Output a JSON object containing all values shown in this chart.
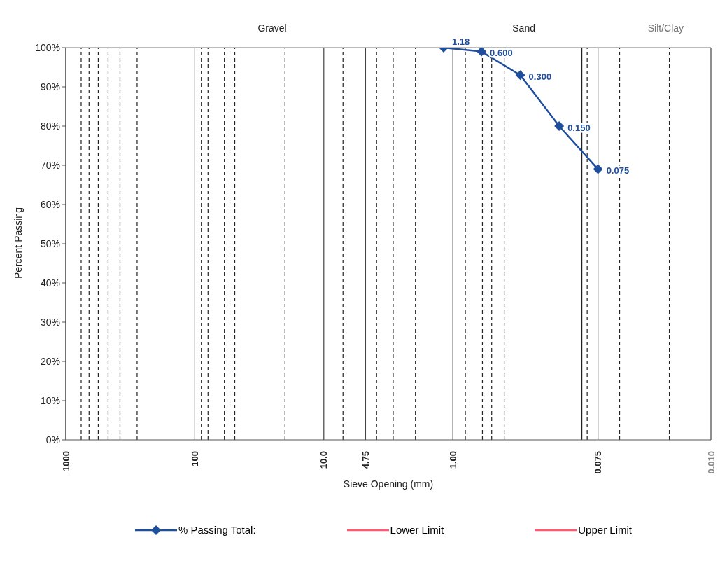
{
  "chart_data": {
    "type": "line",
    "xlabel": "Sieve Opening (mm)",
    "ylabel": "Percent Passing",
    "annotations": [
      "Gravel",
      "Sand",
      "Silt/Clay",
      {
        "text": "1.18",
        "x": 1.18,
        "y": 100
      },
      {
        "text": "0.600",
        "x": 0.6,
        "y": 99
      },
      {
        "text": "0.300",
        "x": 0.3,
        "y": 93
      },
      {
        "text": "0.150",
        "x": 0.15,
        "y": 80
      },
      {
        "text": "0.075",
        "x": 0.075,
        "y": 69
      }
    ],
    "x": [
      1.18,
      0.6,
      0.3,
      0.15,
      0.075
    ],
    "series": [
      {
        "name": "% Passing Total:",
        "color": "#1f4e9c",
        "values": [
          100,
          99,
          93,
          80,
          69
        ],
        "marker": "diamond"
      },
      {
        "name": "Lower Limit",
        "color": "#ff5a72",
        "values": [
          null,
          null,
          null,
          null,
          null
        ],
        "marker": "none"
      },
      {
        "name": "Upper Limit",
        "color": "#ff5a72",
        "values": [
          null,
          null,
          null,
          null,
          null
        ],
        "marker": "none"
      }
    ],
    "log": "x",
    "xlim": [
      1000,
      0.01
    ],
    "xticks": [
      1000,
      100,
      {
        "value": 10,
        "label": "10.0"
      },
      4.75,
      {
        "value": 1,
        "label": "1.00"
      },
      0.075,
      {
        "value": 0.01,
        "label": "0.010"
      }
    ],
    "ylim": [
      0,
      100
    ],
    "yticks": [
      {
        "value": 0,
        "label": "0%"
      },
      {
        "value": 10,
        "label": "10%"
      },
      {
        "value": 20,
        "label": "20%"
      },
      {
        "value": 30,
        "label": "30%"
      },
      {
        "value": 40,
        "label": "40%"
      },
      {
        "value": 50,
        "label": "50%"
      },
      {
        "value": 60,
        "label": "60%"
      },
      {
        "value": 70,
        "label": "70%"
      },
      {
        "value": 80,
        "label": "80%"
      },
      {
        "value": 90,
        "label": "90%"
      },
      {
        "value": 100,
        "label": "100%"
      }
    ],
    "grid": "x",
    "ref_lines": [
      {
        "axis": "x",
        "value": 760,
        "line_style": "dashed"
      },
      {
        "axis": "x",
        "value": 660,
        "line_style": "dashed"
      },
      {
        "axis": "x",
        "value": 560,
        "line_style": "dashed"
      },
      {
        "axis": "x",
        "value": 470,
        "line_style": "dashed"
      },
      {
        "axis": "x",
        "value": 380,
        "line_style": "dashed"
      },
      {
        "axis": "x",
        "value": 280,
        "line_style": "dashed"
      },
      {
        "axis": "x",
        "value": 89,
        "line_style": "dashed"
      },
      {
        "axis": "x",
        "value": 79,
        "line_style": "dashed"
      },
      {
        "axis": "x",
        "value": 59,
        "line_style": "dashed"
      },
      {
        "axis": "x",
        "value": 49,
        "line_style": "dashed"
      },
      {
        "axis": "x",
        "value": 20,
        "line_style": "dashed"
      },
      {
        "axis": "x",
        "value": 7.1,
        "line_style": "dashed"
      },
      {
        "axis": "x",
        "value": 3.9,
        "line_style": "dashed"
      },
      {
        "axis": "x",
        "value": 2.9,
        "line_style": "dashed"
      },
      {
        "axis": "x",
        "value": 1.95,
        "line_style": "dashed"
      },
      {
        "axis": "x",
        "value": 0.8,
        "line_style": "dashed"
      },
      {
        "axis": "x",
        "value": 0.59,
        "line_style": "dashed"
      },
      {
        "axis": "x",
        "value": 0.5,
        "line_style": "dashed"
      },
      {
        "axis": "x",
        "value": 0.4,
        "line_style": "dashed"
      },
      {
        "axis": "x",
        "value": 0.1,
        "line_style": "solid"
      },
      {
        "axis": "x",
        "value": 0.091,
        "line_style": "dashed"
      },
      {
        "axis": "x",
        "value": 0.051,
        "line_style": "dashed"
      },
      {
        "axis": "x",
        "value": 0.021,
        "line_style": "dashed"
      }
    ],
    "legend": "bottom"
  }
}
